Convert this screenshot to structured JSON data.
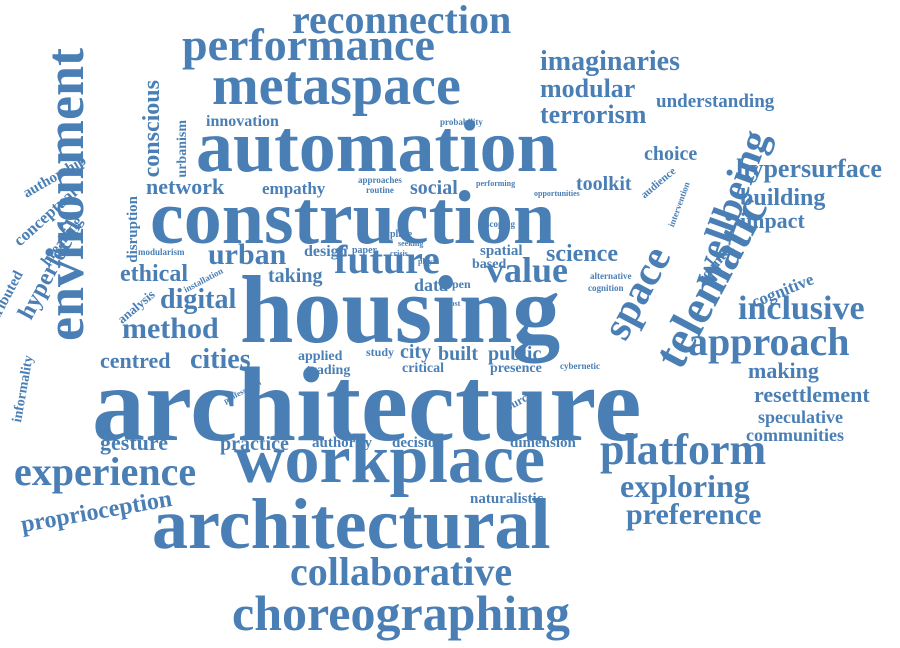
{
  "words": {
    "architecture": "architecture",
    "housing": "housing",
    "construction": "construction",
    "automation": "automation",
    "workplace": "workplace",
    "architectural": "architectural",
    "environment": "environment",
    "metaspace": "metaspace",
    "performance": "performance",
    "reconnection": "reconnection",
    "choreographing": "choreographing",
    "collaborative": "collaborative",
    "telematic": "telematic",
    "space": "space",
    "wellbeing": "wellbeing",
    "future": "future",
    "value": "value",
    "imaginaries": "imaginaries",
    "modular": "modular",
    "terrorism": "terrorism",
    "understanding": "understanding",
    "hypersurface": "hypersurface",
    "building": "building",
    "impact": "impact",
    "choice": "choice",
    "approach": "approach",
    "inclusive": "inclusive",
    "cognitive": "cognitive",
    "making": "making",
    "resettlement": "resettlement",
    "speculative": "speculative",
    "communities": "communities",
    "platform": "platform",
    "exploring": "exploring",
    "preference": "preference",
    "experience": "experience",
    "proprioception": "proprioception",
    "gesture": "gesture",
    "practice": "practice",
    "authority": "authority",
    "decision": "decision",
    "dimension": "dimension",
    "naturalistic": "naturalistic",
    "method": "method",
    "digital": "digital",
    "ethical": "ethical",
    "urban": "urban",
    "taking": "taking",
    "centred": "centred",
    "cities": "cities",
    "network": "network",
    "empathy": "empathy",
    "social": "social",
    "toolkit": "toolkit",
    "science": "science",
    "innovation": "innovation",
    "conscious": "conscious",
    "urbanism": "urbanism",
    "authorship": "authorship",
    "conceptual": "conceptual",
    "hyperlocal": "hyperlocal",
    "distributed": "distributed",
    "breaking": "breaking",
    "disruption": "disruption",
    "analysis": "analysis",
    "informality": "informality",
    "modularism": "modularism",
    "installation": "installation",
    "applied": "applied",
    "trading": "trading",
    "study": "study",
    "city": "city",
    "built": "built",
    "public": "public",
    "critical": "critical",
    "presence": "presence",
    "data": "data",
    "spatial": "spatial",
    "based": "based",
    "design": "design",
    "counter": "counter",
    "audience": "audience",
    "intervention": "intervention",
    "alternative": "alternative",
    "cognition": "cognition",
    "cybernetic": "cybernetic",
    "source": "source",
    "probability": "probability",
    "approaches": "approaches",
    "routine": "routine",
    "performing": "performing",
    "opportunities": "opportunities",
    "scoping": "scoping",
    "paper": "paper",
    "place": "place",
    "seeking": "seeking",
    "crisis": "crisis",
    "play": "play",
    "professional": "professional",
    "open": "open",
    "post": "post"
  },
  "accent_color": "#4a7fb5"
}
